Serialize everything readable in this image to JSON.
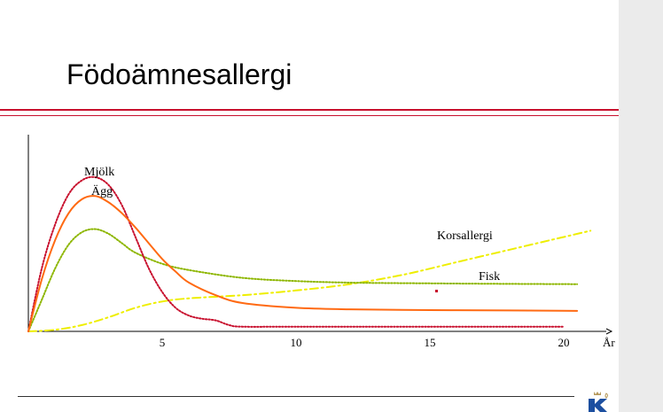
{
  "slide": {
    "title": "Födoämnesallergi"
  },
  "chart_data": {
    "type": "line",
    "xlabel": "År",
    "x_ticks": [
      5,
      10,
      15,
      20
    ],
    "xlim": [
      0,
      21
    ],
    "ylim": [
      0,
      100
    ],
    "y_axis_labels": "none",
    "series": [
      {
        "name": "Mjölk",
        "style": "dotted",
        "color": "#c8102e",
        "x": [
          0,
          0.5,
          1,
          1.5,
          2,
          2.5,
          3,
          3.5,
          4,
          4.5,
          5,
          5.5,
          6,
          6.5,
          7,
          7.5,
          8,
          10,
          15,
          20
        ],
        "y": [
          0,
          40,
          68,
          87,
          96,
          98,
          93,
          80,
          60,
          40,
          25,
          15,
          10,
          8,
          7,
          4,
          3,
          3,
          3,
          3
        ]
      },
      {
        "name": "Ägg",
        "style": "solid",
        "color": "#ff6a13",
        "x": [
          0,
          0.5,
          1,
          1.5,
          2,
          2.5,
          3,
          3.5,
          4,
          4.5,
          5,
          5.5,
          6,
          7,
          8,
          10,
          12,
          15,
          18,
          20.5
        ],
        "y": [
          0,
          33,
          58,
          75,
          84,
          86,
          82,
          75,
          66,
          56,
          46,
          38,
          31,
          23,
          18,
          15,
          14,
          13.5,
          13.3,
          13
        ]
      },
      {
        "name": "Fisk",
        "style": "dotted",
        "color": "#8db600",
        "x": [
          0,
          0.5,
          1,
          1.5,
          2,
          2.5,
          3,
          3.5,
          4,
          5,
          6,
          8,
          10,
          12,
          15,
          18,
          20.5
        ],
        "y": [
          0,
          20,
          40,
          55,
          63,
          65,
          62,
          56,
          50,
          43,
          39,
          34,
          32,
          31,
          30.5,
          30.2,
          30
        ]
      },
      {
        "name": "Korsallergi",
        "style": "dashdot",
        "color": "#eeee00",
        "x": [
          0,
          1,
          2,
          3,
          4,
          5,
          6,
          8,
          10,
          12,
          14,
          16,
          18,
          20,
          21
        ],
        "y": [
          0,
          1,
          4,
          9,
          15,
          19,
          21,
          23,
          26,
          30,
          36,
          44,
          52,
          60,
          64
        ]
      }
    ],
    "labels": [
      "Mjölk",
      "Ägg",
      "Korsallergi",
      "Fisk"
    ]
  }
}
